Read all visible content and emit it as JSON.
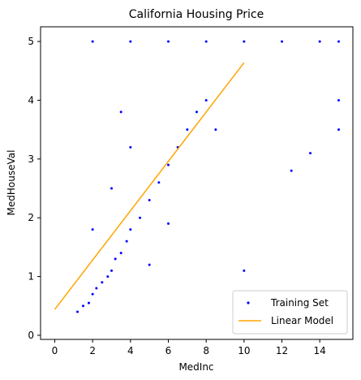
{
  "chart_data": {
    "type": "scatter",
    "title": "California Housing Price",
    "xlabel": "MedInc",
    "ylabel": "MedHouseVal",
    "xlim": [
      -0.75,
      15.75
    ],
    "ylim": [
      -0.07,
      5.25
    ],
    "xticks": [
      0,
      2,
      4,
      6,
      8,
      10,
      12,
      14
    ],
    "yticks": [
      0,
      1,
      2,
      3,
      4,
      5
    ],
    "grid": false,
    "legend_position": "lower-right",
    "colors": {
      "scatter": "#0000ff",
      "line": "#ffa500"
    },
    "series": [
      {
        "name": "Training Set",
        "type": "scatter",
        "points": [
          [
            1.2,
            0.4
          ],
          [
            1.5,
            0.5
          ],
          [
            1.8,
            0.55
          ],
          [
            2.0,
            0.7
          ],
          [
            2.2,
            0.8
          ],
          [
            2.5,
            0.9
          ],
          [
            2.8,
            1.0
          ],
          [
            3.0,
            1.1
          ],
          [
            3.2,
            1.3
          ],
          [
            3.5,
            1.4
          ],
          [
            3.8,
            1.6
          ],
          [
            4.0,
            1.8
          ],
          [
            4.5,
            2.0
          ],
          [
            5.0,
            2.3
          ],
          [
            5.5,
            2.6
          ],
          [
            6.0,
            2.9
          ],
          [
            6.5,
            3.2
          ],
          [
            7.0,
            3.5
          ],
          [
            7.5,
            3.8
          ],
          [
            8.0,
            4.0
          ],
          [
            2.0,
            5.0
          ],
          [
            4.0,
            5.0
          ],
          [
            6.0,
            5.0
          ],
          [
            8.0,
            5.0
          ],
          [
            10.0,
            5.0
          ],
          [
            12.0,
            5.0
          ],
          [
            14.0,
            5.0
          ],
          [
            15.0,
            5.0
          ],
          [
            15.0,
            4.0
          ],
          [
            15.0,
            3.5
          ],
          [
            13.5,
            3.1
          ],
          [
            12.5,
            2.8
          ],
          [
            10.0,
            1.1
          ],
          [
            8.5,
            3.5
          ],
          [
            3.0,
            2.5
          ],
          [
            2.0,
            1.8
          ],
          [
            5.0,
            1.2
          ],
          [
            6.0,
            1.9
          ],
          [
            4.0,
            3.2
          ],
          [
            3.5,
            3.8
          ]
        ]
      },
      {
        "name": "Linear Model",
        "type": "line",
        "points": [
          [
            0,
            0.44
          ],
          [
            10,
            4.64
          ]
        ]
      }
    ]
  }
}
